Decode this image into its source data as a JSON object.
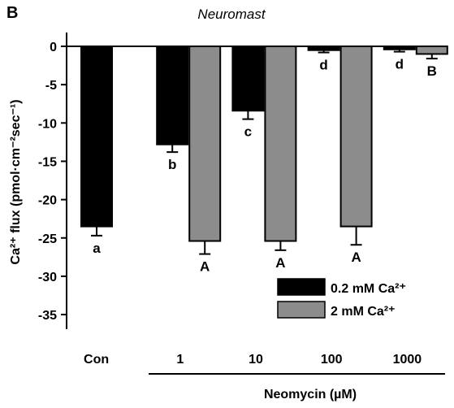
{
  "panel_label": "B",
  "chart_data": {
    "type": "bar",
    "title": "Neuromast",
    "ylabel": "Ca²⁺ flux (pmol·cm⁻²sec⁻¹)",
    "xlabel": "Neomycin (µM)",
    "ylim": [
      -35,
      0
    ],
    "yticks": [
      0,
      -5,
      -10,
      -15,
      -20,
      -25,
      -30,
      -35
    ],
    "categories": [
      "Con",
      "1",
      "10",
      "100",
      "1000"
    ],
    "series": [
      {
        "name": "0.2 mM Ca²⁺",
        "color": "#000000",
        "values": [
          -23.5,
          -12.8,
          -8.4,
          -0.5,
          -0.4
        ],
        "errors": [
          1.2,
          1.0,
          1.1,
          0.3,
          0.3
        ],
        "labels": [
          "a",
          "b",
          "c",
          "d",
          "d"
        ]
      },
      {
        "name": "2 mM Ca²⁺",
        "color": "#8c8c8c",
        "values": [
          null,
          -25.4,
          -25.4,
          -23.5,
          -1.0
        ],
        "errors": [
          null,
          1.7,
          1.2,
          2.4,
          0.6
        ],
        "labels": [
          "A",
          "A",
          "A",
          "A",
          "B"
        ]
      }
    ],
    "legend_position": "bottom-right"
  }
}
